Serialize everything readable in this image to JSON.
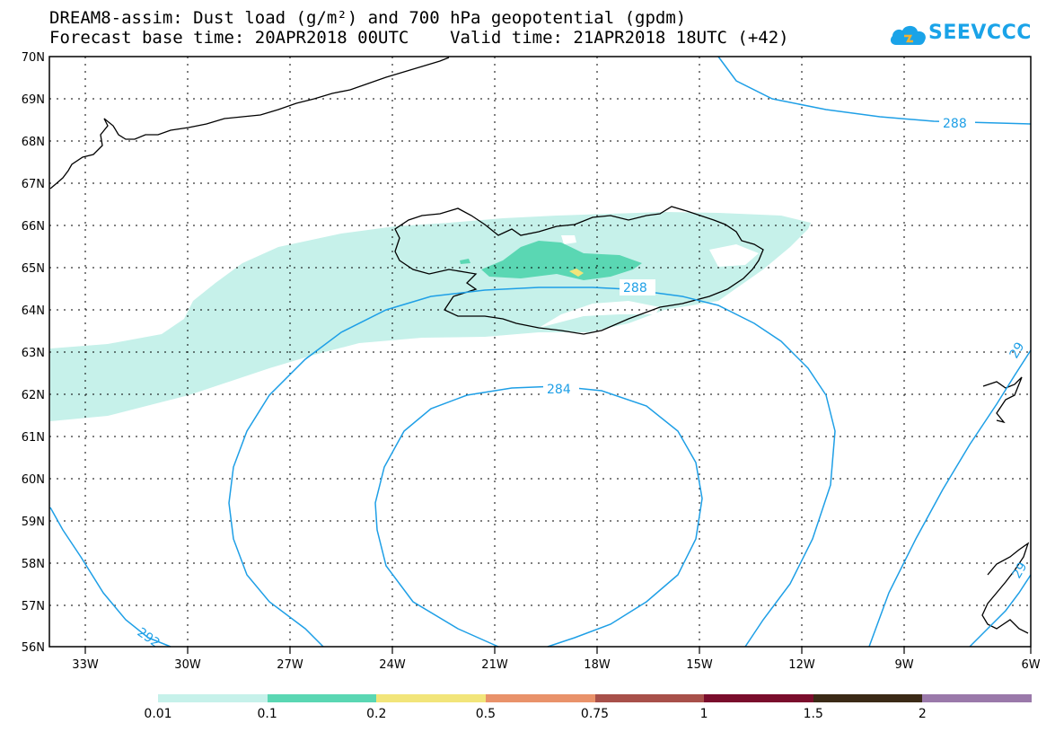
{
  "header": {
    "title_line1": "DREAM8-assim: Dust load (g/m²) and 700 hPa geopotential (gpdm)",
    "title_line2": "Forecast base time: 20APR2018 00UTC    Valid time: 21APR2018 18UTC (+42)"
  },
  "logo": {
    "text": "SEEVCCC",
    "color": "#1aa3e8"
  },
  "axes": {
    "lat_labels": [
      "70N",
      "69N",
      "68N",
      "67N",
      "66N",
      "65N",
      "64N",
      "63N",
      "62N",
      "61N",
      "60N",
      "59N",
      "58N",
      "57N",
      "56N"
    ],
    "lon_labels": [
      "33W",
      "30W",
      "27W",
      "24W",
      "21W",
      "18W",
      "15W",
      "12W",
      "9W",
      "6W"
    ]
  },
  "contour_labels": {
    "c288_upper": "288",
    "c288_mid": "288",
    "c284": "284",
    "c292_left": "292",
    "c292_right_top": "29",
    "c292_right_bottom": "29"
  },
  "colorbar": {
    "colors": [
      "#c6f1ea",
      "#5ad7b3",
      "#f2e57a",
      "#e9926a",
      "#a8504a",
      "#7a0d2c",
      "#3b2a16",
      "#9a79aa"
    ],
    "labels": [
      "0.01",
      "0.1",
      "0.2",
      "0.5",
      "0.75",
      "1",
      "1.5",
      "2"
    ]
  },
  "style": {
    "contour_color": "#1e9fe6",
    "dust_light": "#c6f1ea",
    "dust_mid": "#5ad7b3",
    "dust_high": "#f2e57a"
  }
}
